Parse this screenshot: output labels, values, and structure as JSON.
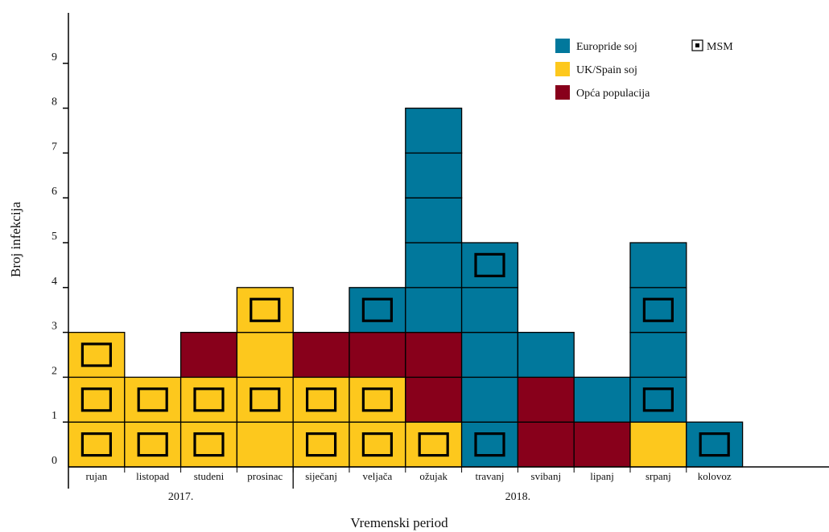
{
  "chart_data": {
    "type": "bar",
    "stacked": true,
    "xlabel": "Vremenski period",
    "ylabel": "Broj infekcija",
    "ylim": [
      0,
      10
    ],
    "yticks": [
      0,
      1,
      2,
      3,
      4,
      5,
      6,
      7,
      8,
      9
    ],
    "grid": false,
    "legend_position": "top-right",
    "categories": [
      "rujan",
      "listopad",
      "studeni",
      "prosinac",
      "siječanj",
      "veljača",
      "ožujak",
      "travanj",
      "svibanj",
      "lipanj",
      "srpanj",
      "kolovoz"
    ],
    "years": [
      {
        "label": "2017.",
        "from": 0,
        "to": 3
      },
      {
        "label": "2018.",
        "from": 4,
        "to": 11
      }
    ],
    "series": [
      {
        "key": "uk",
        "name": "UK/Spain soj",
        "color": "#FDC81D"
      },
      {
        "key": "opca",
        "name": "Opća populacija",
        "color": "#88001B"
      },
      {
        "key": "europride",
        "name": "Europride soj",
        "color": "#01789C"
      }
    ],
    "msm_label": "MSM",
    "stacks": [
      [
        {
          "s": "uk",
          "msm": true
        },
        {
          "s": "uk",
          "msm": true
        },
        {
          "s": "uk",
          "msm": true
        }
      ],
      [
        {
          "s": "uk",
          "msm": true
        },
        {
          "s": "uk",
          "msm": true
        }
      ],
      [
        {
          "s": "uk",
          "msm": true
        },
        {
          "s": "uk",
          "msm": true
        },
        {
          "s": "opca",
          "msm": false
        }
      ],
      [
        {
          "s": "uk",
          "msm": false
        },
        {
          "s": "uk",
          "msm": true
        },
        {
          "s": "uk",
          "msm": false
        },
        {
          "s": "uk",
          "msm": true
        }
      ],
      [
        {
          "s": "uk",
          "msm": true
        },
        {
          "s": "uk",
          "msm": true
        },
        {
          "s": "opca",
          "msm": false
        }
      ],
      [
        {
          "s": "uk",
          "msm": true
        },
        {
          "s": "uk",
          "msm": true
        },
        {
          "s": "opca",
          "msm": false
        },
        {
          "s": "europride",
          "msm": true
        }
      ],
      [
        {
          "s": "uk",
          "msm": true
        },
        {
          "s": "opca",
          "msm": false
        },
        {
          "s": "opca",
          "msm": false
        },
        {
          "s": "europride",
          "msm": false
        },
        {
          "s": "europride",
          "msm": false
        },
        {
          "s": "europride",
          "msm": false
        },
        {
          "s": "europride",
          "msm": false
        },
        {
          "s": "europride",
          "msm": false
        }
      ],
      [
        {
          "s": "europride",
          "msm": true
        },
        {
          "s": "europride",
          "msm": false
        },
        {
          "s": "europride",
          "msm": false
        },
        {
          "s": "europride",
          "msm": false
        },
        {
          "s": "europride",
          "msm": true
        }
      ],
      [
        {
          "s": "opca",
          "msm": false
        },
        {
          "s": "opca",
          "msm": false
        },
        {
          "s": "europride",
          "msm": false
        }
      ],
      [
        {
          "s": "opca",
          "msm": false
        },
        {
          "s": "europride",
          "msm": false
        }
      ],
      [
        {
          "s": "uk",
          "msm": false
        },
        {
          "s": "europride",
          "msm": true
        },
        {
          "s": "europride",
          "msm": false
        },
        {
          "s": "europride",
          "msm": true
        },
        {
          "s": "europride",
          "msm": false
        }
      ],
      [
        {
          "s": "europride",
          "msm": true
        }
      ]
    ]
  }
}
